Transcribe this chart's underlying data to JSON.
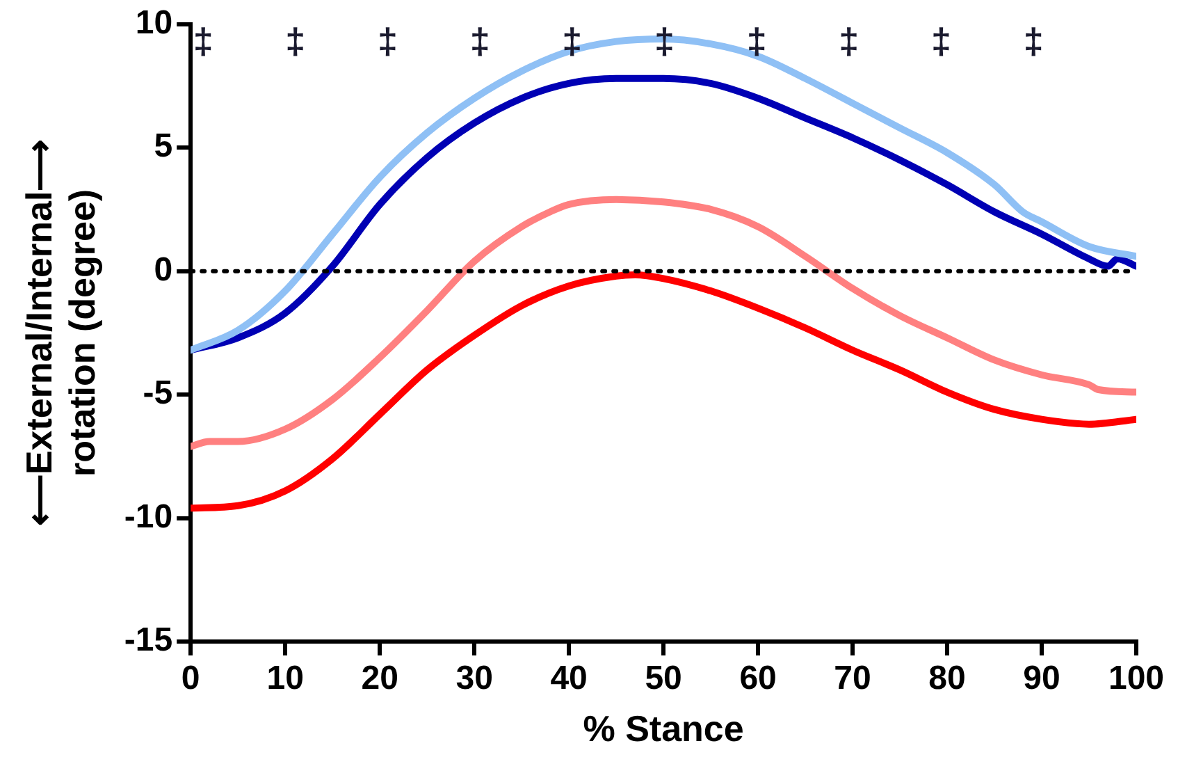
{
  "chart_data": {
    "type": "line",
    "xlabel": "% Stance",
    "ylabel": "⟵External/Internal⟶\nrotation (degree)",
    "xlim": [
      0,
      100
    ],
    "xticks": [
      0,
      10,
      20,
      30,
      40,
      50,
      60,
      70,
      80,
      90,
      100
    ],
    "ylim": [
      -15,
      10
    ],
    "yticks": [
      -15,
      -10,
      -5,
      0,
      5,
      10
    ],
    "grid": false,
    "legend": false,
    "marker": "none",
    "line_style": "solid",
    "ref_lines": [
      {
        "axis": "y",
        "value": 0,
        "color": "#000000",
        "line_style": "dotted"
      }
    ],
    "annotations": [
      "‡",
      "‡",
      "‡",
      "‡",
      "‡",
      "‡",
      "‡",
      "‡",
      "‡",
      "‡"
    ],
    "series": [
      {
        "color": "#8fc0f5",
        "x": [
          0,
          5,
          10,
          15,
          20,
          25,
          30,
          35,
          40,
          45,
          50,
          55,
          60,
          65,
          70,
          75,
          80,
          85,
          88,
          90,
          95,
          100
        ],
        "values": [
          -3.2,
          -2.4,
          -0.8,
          1.5,
          3.8,
          5.6,
          7.0,
          8.1,
          8.9,
          9.3,
          9.4,
          9.2,
          8.7,
          7.8,
          6.8,
          5.8,
          4.8,
          3.5,
          2.4,
          2.0,
          1.0,
          0.6
        ]
      },
      {
        "color": "#0000b4",
        "x": [
          0,
          5,
          10,
          15,
          20,
          25,
          30,
          35,
          40,
          45,
          50,
          55,
          60,
          65,
          70,
          75,
          80,
          85,
          90,
          95,
          97,
          98,
          100
        ],
        "values": [
          -3.2,
          -2.7,
          -1.7,
          0.2,
          2.7,
          4.6,
          6.0,
          7.0,
          7.6,
          7.8,
          7.8,
          7.6,
          7.0,
          6.2,
          5.4,
          4.5,
          3.5,
          2.4,
          1.5,
          0.5,
          0.2,
          0.5,
          0.2
        ]
      },
      {
        "color": "#ff8080",
        "x": [
          0,
          2,
          5,
          10,
          15,
          20,
          25,
          30,
          35,
          38,
          40,
          45,
          50,
          55,
          60,
          65,
          70,
          75,
          80,
          85,
          90,
          95,
          96,
          100
        ],
        "values": [
          -7.1,
          -6.9,
          -6.9,
          -6.4,
          -5.2,
          -3.5,
          -1.6,
          0.4,
          1.8,
          2.4,
          2.7,
          2.9,
          2.8,
          2.5,
          1.8,
          0.6,
          -0.7,
          -1.8,
          -2.7,
          -3.6,
          -4.2,
          -4.6,
          -4.8,
          -4.9
        ]
      },
      {
        "color": "#ff0000",
        "x": [
          0,
          5,
          10,
          15,
          20,
          25,
          30,
          35,
          40,
          45,
          47,
          50,
          55,
          60,
          65,
          70,
          75,
          80,
          85,
          90,
          95,
          100
        ],
        "values": [
          -9.6,
          -9.5,
          -8.9,
          -7.6,
          -5.8,
          -4.0,
          -2.6,
          -1.4,
          -0.6,
          -0.2,
          -0.15,
          -0.3,
          -0.8,
          -1.5,
          -2.3,
          -3.2,
          -4.0,
          -4.9,
          -5.6,
          -6.0,
          -6.2,
          -6.0
        ]
      }
    ]
  }
}
